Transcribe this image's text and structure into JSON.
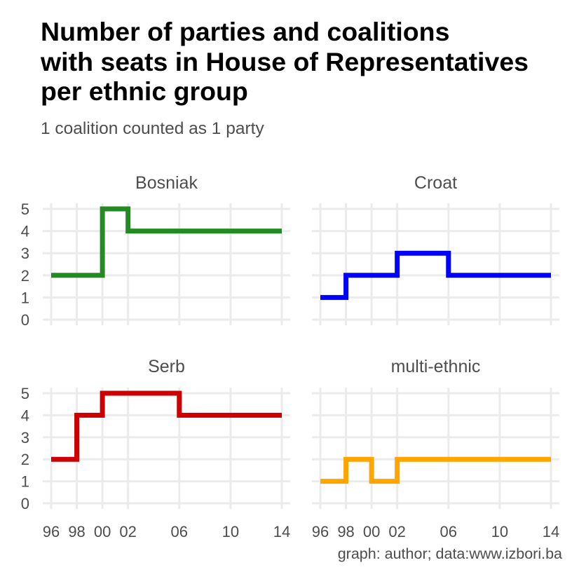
{
  "header": {
    "title_lines": [
      "Number of parties and coalitions",
      "with seats in House of Representatives",
      "per ethnic group"
    ],
    "subtitle": "1 coalition counted as 1 party"
  },
  "caption": "graph: author; data:www.izbori.ba",
  "chart_data": {
    "type": "line",
    "step": "hv",
    "x": [
      1996,
      1998,
      2000,
      2002,
      2006,
      2010,
      2014
    ],
    "x_tick_labels": [
      "96",
      "98",
      "00",
      "02",
      "06",
      "10",
      "14"
    ],
    "xlim": [
      1996,
      2014
    ],
    "ylim": [
      0,
      5
    ],
    "y_ticks": [
      0,
      1,
      2,
      3,
      4,
      5
    ],
    "grid": true,
    "panels": [
      {
        "name": "Bosniak",
        "color": "#228B22",
        "values": [
          2,
          2,
          5,
          4,
          4,
          4,
          4
        ]
      },
      {
        "name": "Croat",
        "color": "#0000FF",
        "values": [
          1,
          2,
          2,
          3,
          2,
          2,
          2
        ]
      },
      {
        "name": "Serb",
        "color": "#CC0000",
        "values": [
          2,
          4,
          5,
          5,
          4,
          4,
          4
        ]
      },
      {
        "name": "multi-ethnic",
        "color": "#FFA500",
        "values": [
          1,
          2,
          1,
          2,
          2,
          2,
          2
        ]
      }
    ]
  }
}
